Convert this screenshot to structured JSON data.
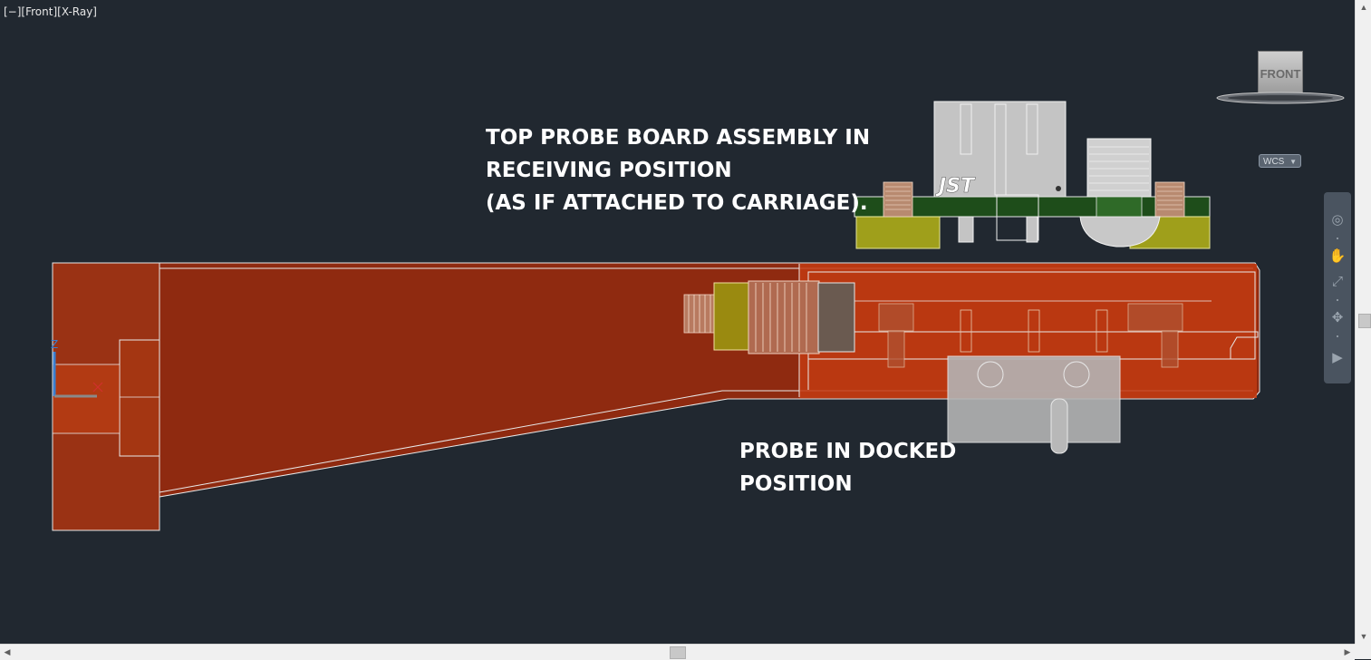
{
  "viewport": {
    "controls": {
      "minimize": "[−]",
      "view": "[Front]",
      "style": "[X-Ray]"
    }
  },
  "annotations": {
    "top_assembly": {
      "line1": "TOP PROBE BOARD ASSEMBLY IN",
      "line2": "RECEIVING POSITION",
      "line3": "(AS IF ATTACHED TO CARRIAGE)."
    },
    "docked_probe": {
      "line1": "PROBE IN DOCKED",
      "line2": "POSITION"
    }
  },
  "model": {
    "connector_brand": "JST",
    "ucs_axis_label": "Z",
    "colors": {
      "background": "#212830",
      "dock_body": "#8f2a10",
      "dock_block": "#9a3214",
      "pcb": "#1e4d1a",
      "brass_insert": "#9a8a10",
      "connector": "#c4c4c4",
      "axis_x": "#d0312d",
      "axis_z": "#3a7fd0"
    }
  },
  "viewcube": {
    "face_label": "FRONT"
  },
  "wcs_menu": {
    "label": "WCS"
  },
  "navigation_bar": {
    "icons": [
      "steering-wheel-icon",
      "pan-icon",
      "zoom-icon",
      "orbit-icon",
      "showmotion-icon"
    ]
  }
}
